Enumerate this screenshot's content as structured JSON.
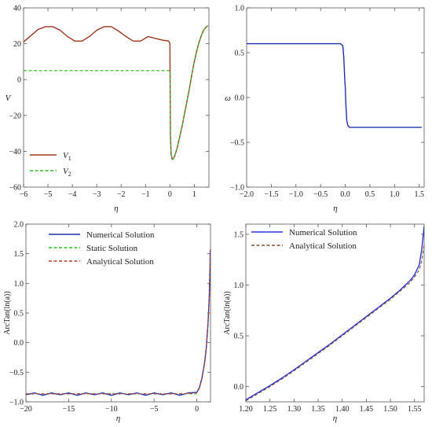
{
  "chart_data": [
    {
      "type": "line",
      "xlabel": "η",
      "ylabel": "V",
      "xlim": [
        -6,
        1.6
      ],
      "ylim": [
        -60,
        40
      ],
      "xticks": [
        -6,
        -5,
        -4,
        -3,
        -2,
        -1,
        0,
        1
      ],
      "yticks": [
        -60,
        -40,
        -20,
        0,
        20,
        40
      ],
      "legend": "bottom-left",
      "grid": false,
      "series": [
        {
          "name": "V",
          "sub": "1",
          "color": "#a0341f",
          "dash": "solid",
          "x": [
            -6,
            -5.7,
            -5.4,
            -5.1,
            -4.8,
            -4.5,
            -4.2,
            -3.9,
            -3.6,
            -3.3,
            -3.0,
            -2.7,
            -2.4,
            -2.1,
            -1.8,
            -1.5,
            -1.2,
            -0.9,
            -0.6,
            -0.3,
            -0.05,
            0.0,
            0.02,
            0.05,
            0.1,
            0.15,
            0.2,
            0.3,
            0.4,
            0.5,
            0.6,
            0.7,
            0.8,
            0.9,
            1.0,
            1.1,
            1.2,
            1.3,
            1.4,
            1.5,
            1.57
          ],
          "y": [
            21,
            24.5,
            28,
            29.5,
            29.5,
            27.5,
            24,
            21.5,
            21.5,
            24,
            27.5,
            29.5,
            29.5,
            27,
            24,
            21.5,
            21.5,
            24,
            23,
            22,
            21.5,
            20,
            -30,
            -42,
            -44.5,
            -44,
            -42.5,
            -38,
            -32,
            -26,
            -19,
            -12,
            -5,
            3,
            10,
            16,
            21,
            25,
            28,
            29.5,
            30
          ]
        },
        {
          "name": "V",
          "sub": "2",
          "color": "#2bbf1f",
          "dash": "dashed",
          "x": [
            -6,
            -3,
            0.0,
            0.01,
            0.02,
            0.05,
            0.1,
            0.15,
            0.2,
            0.3,
            0.4,
            0.5,
            0.6,
            0.7,
            0.8,
            0.9,
            1.0,
            1.1,
            1.2,
            1.3,
            1.4,
            1.5,
            1.57
          ],
          "y": [
            5,
            5,
            5,
            4,
            -30,
            -42,
            -44.5,
            -44,
            -42.5,
            -38,
            -32,
            -26,
            -19,
            -12,
            -5,
            3,
            10,
            16,
            21,
            25,
            28,
            29.5,
            30
          ]
        }
      ]
    },
    {
      "type": "line",
      "xlabel": "η",
      "ylabel": "ω",
      "xlim": [
        -2.0,
        1.6
      ],
      "ylim": [
        -1.0,
        1.0
      ],
      "xticks": [
        -2.0,
        -1.5,
        -1.0,
        -0.5,
        0.0,
        0.5,
        1.0,
        1.5
      ],
      "yticks": [
        -1.0,
        -0.5,
        0.0,
        0.5,
        1.0
      ],
      "grid": false,
      "series": [
        {
          "color": "#1f2fb3",
          "dash": "solid",
          "x": [
            -2.0,
            -0.1,
            -0.05,
            -0.03,
            -0.01,
            0.0,
            0.01,
            0.03,
            0.05,
            0.08,
            0.1,
            1.55
          ],
          "y": [
            0.6,
            0.6,
            0.58,
            0.45,
            0.2,
            0.12,
            -0.05,
            -0.25,
            -0.31,
            -0.33,
            -0.333,
            -0.333
          ]
        }
      ]
    },
    {
      "type": "line",
      "xlabel": "η",
      "ylabel": "ArcTan(ln(a))",
      "xlim": [
        -20,
        1.6
      ],
      "ylim": [
        -1.0,
        2.0
      ],
      "xticks": [
        -20,
        -15,
        -10,
        -5,
        0
      ],
      "yticks": [
        -1.0,
        -0.5,
        0.0,
        0.5,
        1.0,
        1.5,
        2.0
      ],
      "legend": "top-left",
      "grid": false,
      "series": [
        {
          "name": "Numerical Solution",
          "color": "#1f2fb3",
          "dash": "solid",
          "x": [
            -20,
            -19,
            -18,
            -17,
            -16,
            -15,
            -14,
            -13,
            -12,
            -11,
            -10,
            -9,
            -8,
            -7,
            -6,
            -5,
            -4,
            -3,
            -2,
            -1,
            0,
            0.3,
            0.6,
            0.9,
            1.1,
            1.3,
            1.45,
            1.55,
            1.57
          ],
          "y": [
            -0.88,
            -0.85,
            -0.89,
            -0.85,
            -0.88,
            -0.85,
            -0.89,
            -0.85,
            -0.88,
            -0.85,
            -0.89,
            -0.85,
            -0.88,
            -0.85,
            -0.89,
            -0.85,
            -0.88,
            -0.85,
            -0.89,
            -0.85,
            -0.84,
            -0.76,
            -0.6,
            -0.35,
            -0.1,
            0.3,
            0.75,
            1.3,
            1.57
          ]
        },
        {
          "name": "Static Solution",
          "color": "#2bbf1f",
          "dash": "dashed",
          "x": [
            -20,
            -10,
            -2,
            -1,
            0
          ],
          "y": [
            -0.865,
            -0.865,
            -0.865,
            -0.865,
            -0.865
          ]
        },
        {
          "name": "Analytical Solution",
          "color": "#b83a2a",
          "dash": "dashed",
          "x": [
            -20,
            -10,
            -2,
            -1,
            0,
            0.3,
            0.6,
            0.9,
            1.1,
            1.3,
            1.45,
            1.55,
            1.57
          ],
          "y": [
            -0.865,
            -0.865,
            -0.865,
            -0.86,
            -0.845,
            -0.77,
            -0.61,
            -0.36,
            -0.11,
            0.29,
            0.74,
            1.29,
            1.56
          ]
        }
      ]
    },
    {
      "type": "line",
      "xlabel": "η",
      "ylabel": "ArcTan(ln(a))",
      "xlim": [
        1.2,
        1.57
      ],
      "ylim": [
        -0.15,
        1.6
      ],
      "xticks": [
        1.2,
        1.25,
        1.3,
        1.35,
        1.4,
        1.45,
        1.5,
        1.55
      ],
      "yticks": [
        0.0,
        0.5,
        1.0,
        1.5
      ],
      "legend": "top-left",
      "grid": false,
      "series": [
        {
          "name": "Numerical Solution",
          "color": "#2a36d6",
          "dash": "solid",
          "x": [
            1.2,
            1.225,
            1.25,
            1.275,
            1.3,
            1.325,
            1.35,
            1.375,
            1.4,
            1.425,
            1.45,
            1.475,
            1.5,
            1.52,
            1.54,
            1.55,
            1.56,
            1.565,
            1.57
          ],
          "y": [
            -0.13,
            -0.06,
            0.01,
            0.085,
            0.165,
            0.25,
            0.335,
            0.42,
            0.51,
            0.6,
            0.69,
            0.78,
            0.87,
            0.95,
            1.04,
            1.1,
            1.2,
            1.35,
            1.58
          ]
        },
        {
          "name": "Analytical Solution",
          "color": "#8a4a2f",
          "dash": "dashed",
          "x": [
            1.2,
            1.225,
            1.25,
            1.275,
            1.3,
            1.325,
            1.35,
            1.375,
            1.4,
            1.425,
            1.45,
            1.475,
            1.5,
            1.52,
            1.54,
            1.55,
            1.56,
            1.565,
            1.57
          ],
          "y": [
            -0.14,
            -0.07,
            0.0,
            0.075,
            0.155,
            0.24,
            0.325,
            0.41,
            0.5,
            0.59,
            0.68,
            0.77,
            0.86,
            0.94,
            1.02,
            1.08,
            1.15,
            1.24,
            1.4
          ]
        }
      ]
    }
  ]
}
